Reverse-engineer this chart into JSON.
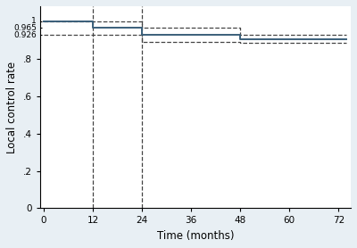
{
  "background_color": "#e8eff4",
  "plot_bg_color": "#ffffff",
  "line_color": "#3a5f7a",
  "dashed_color": "#444444",
  "xlabel": "Time (months)",
  "ylabel": "Local control rate",
  "xlim": [
    -1,
    75
  ],
  "ylim": [
    0,
    1.08
  ],
  "xticks": [
    0,
    12,
    24,
    36,
    48,
    60,
    72
  ],
  "yticks": [
    0,
    0.2,
    0.4,
    0.6,
    0.8
  ],
  "ytick_labels": [
    "0",
    ".2",
    ".4",
    ".6",
    ".8"
  ],
  "extra_ytick_labels": [
    "1",
    "0.965",
    "0.926"
  ],
  "extra_ytick_vals": [
    1.0,
    0.965,
    0.926
  ],
  "vlines": [
    12,
    24
  ],
  "kaplan_x": [
    0,
    12,
    12,
    24,
    24,
    48,
    48,
    74
  ],
  "kaplan_y": [
    1.0,
    1.0,
    0.965,
    0.965,
    0.926,
    0.926,
    0.905,
    0.905
  ],
  "ci_upper_x": [
    0,
    12,
    12,
    24,
    24,
    48,
    48,
    74
  ],
  "ci_upper_y": [
    1.0,
    1.0,
    1.0,
    1.0,
    0.965,
    0.965,
    0.926,
    0.926
  ],
  "ci_lower_x": [
    0,
    12,
    12,
    24,
    24,
    48,
    48,
    74
  ],
  "ci_lower_y": [
    0.926,
    0.926,
    0.926,
    0.926,
    0.887,
    0.887,
    0.884,
    0.884
  ]
}
